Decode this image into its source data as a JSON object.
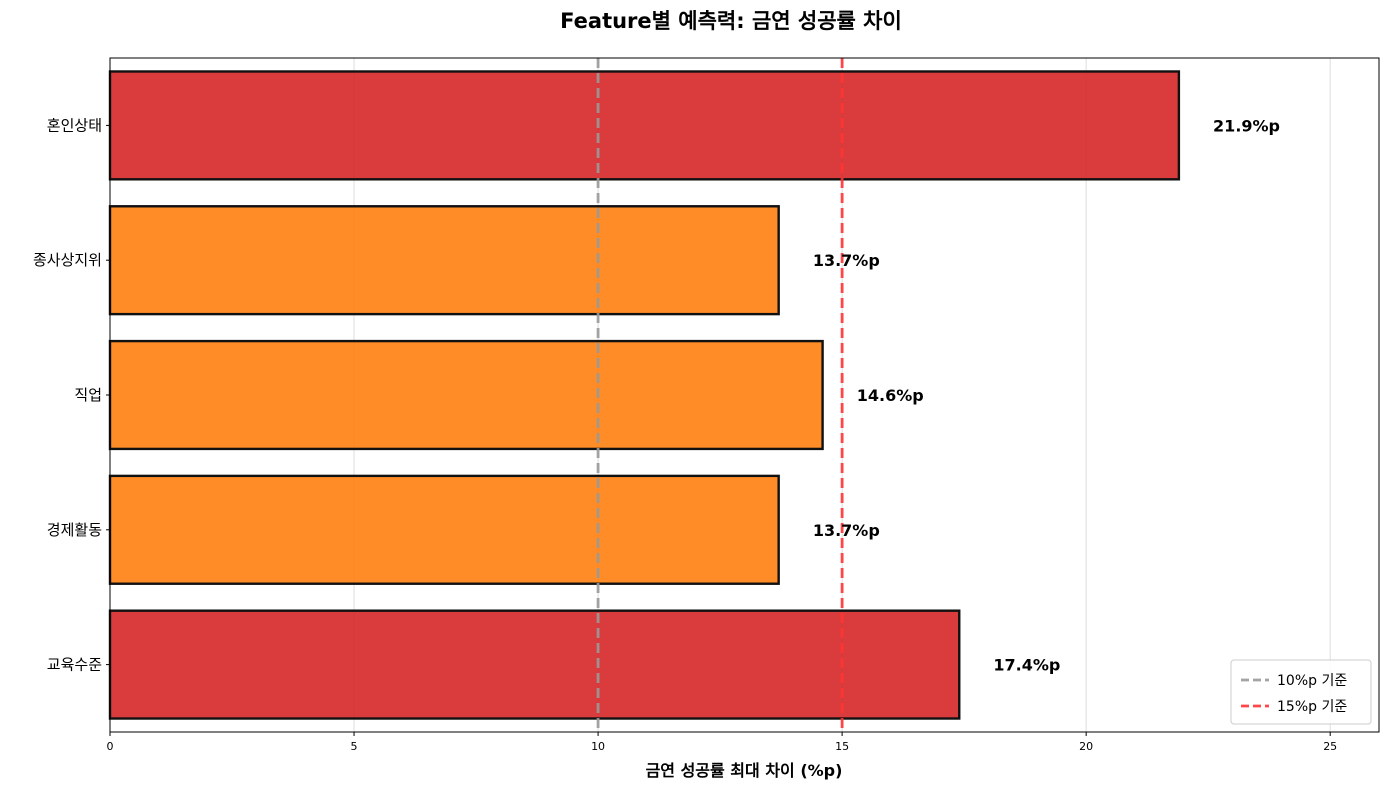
{
  "chart_data": {
    "type": "bar",
    "orientation": "horizontal",
    "title": "Feature별 예측력: 금연 성공률 차이",
    "xlabel": "금연 성공률 최대 차이 (%p)",
    "ylabel": "",
    "xlim": [
      0,
      26
    ],
    "xticks": [
      0,
      5,
      10,
      15,
      20,
      25
    ],
    "grid": "x",
    "categories": [
      "혼인상태",
      "종사상지위",
      "직업",
      "경제활동",
      "교육수준"
    ],
    "values": [
      21.9,
      13.7,
      14.6,
      13.7,
      17.4
    ],
    "value_labels": [
      "21.9%p",
      "13.7%p",
      "14.6%p",
      "13.7%p",
      "17.4%p"
    ],
    "bar_colors": [
      "#d62728",
      "#ff7f0e",
      "#ff7f0e",
      "#ff7f0e",
      "#d62728"
    ],
    "reference_lines": [
      {
        "value": 10,
        "label": "10%p 기준",
        "color": "#999999",
        "style": "dashed"
      },
      {
        "value": 15,
        "label": "15%p 기준",
        "color": "#ff3333",
        "style": "dashed"
      }
    ],
    "legend_position": "bottom-right"
  }
}
